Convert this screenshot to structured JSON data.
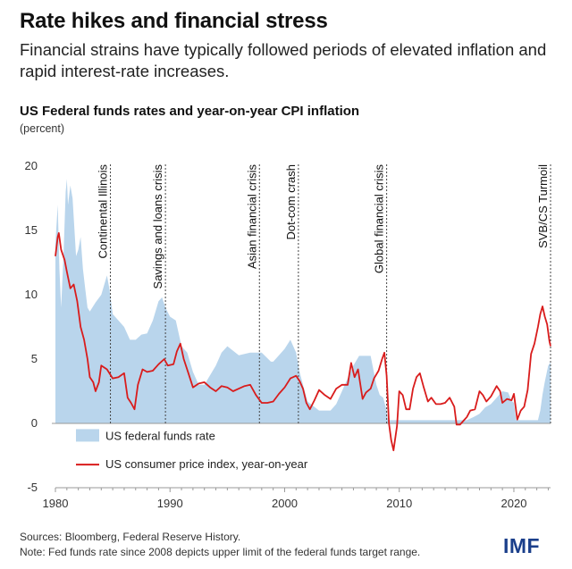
{
  "header": {
    "title": "Rate hikes and financial stress",
    "subtitle": "Financial strains have typically followed periods of elevated inflation and rapid interest-rate increases."
  },
  "chart_data": {
    "type": "area",
    "title": "US Federal funds rates and year-on-year CPI inflation",
    "ylabel": "(percent)",
    "xlabel": "",
    "xlim": [
      1980,
      2023.2
    ],
    "ylim": [
      -5,
      20
    ],
    "yticks": [
      -5,
      0,
      5,
      10,
      15,
      20
    ],
    "xticks": [
      1980,
      1990,
      2000,
      2010,
      2020
    ],
    "grid": false,
    "legend_position": "bottom-left",
    "series": [
      {
        "name": "US federal funds rate",
        "kind": "area",
        "color": "#b9d5ec",
        "x": [
          1980.0,
          1980.2,
          1980.35,
          1980.5,
          1980.7,
          1980.9,
          1981.0,
          1981.1,
          1981.3,
          1981.5,
          1981.6,
          1981.8,
          1982.0,
          1982.2,
          1982.4,
          1982.6,
          1982.8,
          1983.0,
          1983.5,
          1984.0,
          1984.5,
          1984.7,
          1985.0,
          1985.5,
          1986.0,
          1986.5,
          1987.0,
          1987.5,
          1988.0,
          1988.5,
          1989.0,
          1989.3,
          1989.6,
          1990.0,
          1990.5,
          1991.0,
          1991.5,
          1992.0,
          1992.5,
          1993.0,
          1994.0,
          1994.5,
          1995.0,
          1996.0,
          1997.0,
          1998.0,
          1998.8,
          1999.0,
          1999.5,
          2000.0,
          2000.5,
          2001.0,
          2001.3,
          2001.6,
          2002.0,
          2003.0,
          2003.5,
          2004.0,
          2004.5,
          2005.0,
          2005.5,
          2006.0,
          2006.5,
          2007.0,
          2007.5,
          2008.0,
          2008.3,
          2008.6,
          2008.9,
          2009.0,
          2015.9,
          2016.5,
          2017.0,
          2017.5,
          2018.0,
          2018.5,
          2019.0,
          2019.5,
          2019.8,
          2020.0,
          2020.2,
          2022.1,
          2022.3,
          2022.5,
          2022.7,
          2023.0,
          2023.2
        ],
        "values": [
          14.0,
          17.0,
          12.0,
          9.0,
          13.0,
          18.0,
          19.0,
          17.0,
          18.5,
          17.5,
          16.0,
          13.0,
          13.5,
          14.5,
          12.0,
          10.5,
          9.0,
          8.7,
          9.4,
          10.0,
          11.5,
          10.5,
          8.5,
          8.0,
          7.5,
          6.5,
          6.5,
          6.9,
          7.0,
          8.0,
          9.5,
          9.8,
          9.0,
          8.3,
          8.0,
          6.0,
          5.5,
          4.0,
          3.0,
          3.0,
          4.5,
          5.5,
          6.0,
          5.3,
          5.5,
          5.5,
          4.8,
          4.8,
          5.3,
          5.8,
          6.5,
          5.5,
          4.0,
          3.0,
          1.7,
          1.0,
          1.0,
          1.0,
          1.5,
          2.5,
          3.5,
          4.5,
          5.25,
          5.25,
          5.25,
          3.0,
          2.2,
          2.0,
          1.0,
          0.25,
          0.25,
          0.5,
          0.75,
          1.25,
          1.5,
          2.0,
          2.5,
          2.4,
          1.75,
          1.6,
          0.25,
          0.25,
          1.0,
          2.25,
          3.25,
          4.5,
          4.75
        ]
      },
      {
        "name": "US consumer price index, year-on-year",
        "kind": "line",
        "color": "#d91c1c",
        "x": [
          1980.0,
          1980.2,
          1980.3,
          1980.5,
          1980.8,
          1981.0,
          1981.3,
          1981.6,
          1981.9,
          1982.2,
          1982.5,
          1982.8,
          1983.0,
          1983.3,
          1983.5,
          1983.8,
          1984.0,
          1984.5,
          1985.0,
          1985.5,
          1986.0,
          1986.3,
          1986.6,
          1986.9,
          1987.2,
          1987.6,
          1988.0,
          1988.5,
          1989.0,
          1989.5,
          1989.8,
          1990.3,
          1990.6,
          1990.9,
          1991.2,
          1991.6,
          1992.0,
          1992.5,
          1993.0,
          1993.5,
          1994.0,
          1994.5,
          1995.0,
          1995.5,
          1996.0,
          1996.5,
          1997.0,
          1997.5,
          1998.0,
          1998.5,
          1999.0,
          1999.5,
          2000.0,
          2000.5,
          2001.0,
          2001.3,
          2001.6,
          2001.9,
          2002.2,
          2002.6,
          2003.0,
          2003.5,
          2004.0,
          2004.5,
          2005.0,
          2005.5,
          2005.8,
          2006.1,
          2006.4,
          2006.8,
          2007.1,
          2007.5,
          2007.8,
          2008.2,
          2008.5,
          2008.7,
          2008.9,
          2009.1,
          2009.3,
          2009.5,
          2009.8,
          2010.0,
          2010.3,
          2010.6,
          2010.9,
          2011.2,
          2011.5,
          2011.8,
          2012.1,
          2012.5,
          2012.8,
          2013.2,
          2013.6,
          2014.0,
          2014.4,
          2014.8,
          2015.0,
          2015.3,
          2015.6,
          2015.9,
          2016.2,
          2016.6,
          2017.0,
          2017.3,
          2017.6,
          2018.0,
          2018.5,
          2018.8,
          2019.0,
          2019.4,
          2019.8,
          2020.0,
          2020.3,
          2020.6,
          2020.9,
          2021.2,
          2021.5,
          2021.8,
          2022.1,
          2022.3,
          2022.5,
          2022.7,
          2022.9,
          2023.1,
          2023.2
        ],
        "values": [
          13.0,
          14.5,
          14.8,
          13.5,
          12.7,
          11.8,
          10.5,
          10.8,
          9.5,
          7.5,
          6.5,
          5.0,
          3.6,
          3.2,
          2.5,
          3.2,
          4.5,
          4.2,
          3.5,
          3.6,
          3.9,
          2.0,
          1.6,
          1.1,
          3.0,
          4.2,
          4.0,
          4.1,
          4.6,
          5.0,
          4.5,
          4.6,
          5.6,
          6.2,
          5.0,
          3.9,
          2.8,
          3.1,
          3.2,
          2.8,
          2.5,
          2.9,
          2.8,
          2.5,
          2.7,
          2.9,
          3.0,
          2.2,
          1.6,
          1.6,
          1.7,
          2.3,
          2.8,
          3.5,
          3.7,
          3.3,
          2.7,
          1.6,
          1.1,
          1.8,
          2.6,
          2.2,
          1.9,
          2.7,
          3.0,
          3.0,
          4.7,
          3.6,
          4.2,
          1.9,
          2.4,
          2.7,
          3.5,
          4.1,
          5.0,
          5.5,
          3.7,
          0.0,
          -1.3,
          -2.1,
          -0.2,
          2.5,
          2.2,
          1.1,
          1.1,
          2.7,
          3.6,
          3.9,
          2.9,
          1.7,
          2.0,
          1.5,
          1.5,
          1.6,
          2.0,
          1.3,
          -0.1,
          -0.1,
          0.2,
          0.5,
          1.0,
          1.1,
          2.5,
          2.2,
          1.7,
          2.1,
          2.9,
          2.5,
          1.6,
          1.9,
          1.8,
          2.3,
          0.3,
          1.0,
          1.3,
          2.6,
          5.4,
          6.2,
          7.5,
          8.5,
          9.1,
          8.3,
          7.7,
          6.4,
          6.0
        ]
      }
    ],
    "annotations": [
      {
        "x": 1984.8,
        "label": "Continental Illinois"
      },
      {
        "x": 1989.6,
        "label": "Savings and loans crisis"
      },
      {
        "x": 1997.8,
        "label": "Asian financial crisis"
      },
      {
        "x": 2001.2,
        "label": "Dot-com crash"
      },
      {
        "x": 2008.9,
        "label": "Global financial crisis"
      },
      {
        "x": 2023.2,
        "label": "SVB/CS Turmoil"
      }
    ]
  },
  "footer": {
    "sources": "Sources: Bloomberg, Federal Reserve History.",
    "note": "Note: Fed funds rate since 2008 depicts upper limit of the federal funds target range.",
    "logo": "IMF"
  },
  "colors": {
    "area": "#b9d5ec",
    "line": "#d91c1c",
    "logo": "#1b3f8b",
    "axis": "#999999",
    "event_line": "#444444"
  }
}
